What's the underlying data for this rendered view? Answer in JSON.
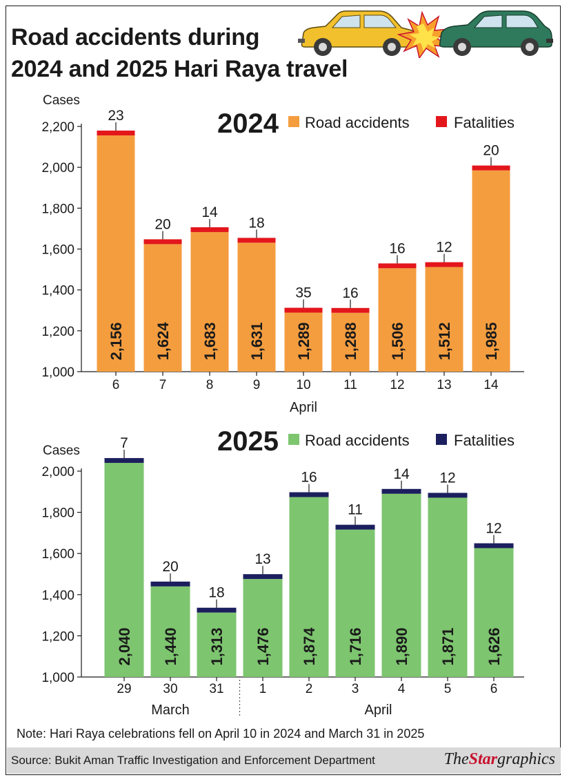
{
  "title_lines": [
    "Road accidents during",
    "2024 and 2025 Hari Raya travel"
  ],
  "note": "Note: Hari Raya celebrations fell on April 10 in 2024 and March 31 in 2025",
  "source": "Source: Bukit Aman Traffic Investigation and Enforcement Department",
  "logo": {
    "the": "The",
    "star": "Star",
    "graphics": "graphics"
  },
  "colors": {
    "orange": "#f49d3f",
    "red": "#e3161c",
    "green": "#7dc56f",
    "navy": "#1c1f5e",
    "text": "#1a1a1a"
  },
  "chart_data": [
    {
      "type": "bar",
      "year_label": "2024",
      "ylabel": "Cases",
      "xlabel": "April",
      "ylim": [
        1000,
        2200
      ],
      "yticks": [
        "1,000",
        "1,200",
        "1,400",
        "1,600",
        "1,800",
        "2,000",
        "2,200"
      ],
      "categories": [
        "6",
        "7",
        "8",
        "9",
        "10",
        "11",
        "12",
        "13",
        "14"
      ],
      "series": [
        {
          "name": "Road accidents",
          "color": "orange",
          "values": [
            2156,
            1624,
            1683,
            1631,
            1289,
            1288,
            1506,
            1512,
            1985
          ],
          "labels": [
            "2,156",
            "1,624",
            "1,683",
            "1,631",
            "1,289",
            "1,288",
            "1,506",
            "1,512",
            "1,985"
          ]
        },
        {
          "name": "Fatalities",
          "color": "red",
          "values": [
            23,
            20,
            14,
            18,
            35,
            16,
            16,
            12,
            20
          ]
        }
      ]
    },
    {
      "type": "bar",
      "year_label": "2025",
      "ylabel": "Cases",
      "ylim": [
        1000,
        2000
      ],
      "yticks": [
        "1,000",
        "1,200",
        "1,400",
        "1,600",
        "1,800",
        "2,000"
      ],
      "categories": [
        "29",
        "30",
        "31",
        "1",
        "2",
        "3",
        "4",
        "5",
        "6"
      ],
      "groups": [
        {
          "label": "March",
          "count": 3
        },
        {
          "label": "April",
          "count": 6
        }
      ],
      "series": [
        {
          "name": "Road accidents",
          "color": "green",
          "values": [
            2040,
            1440,
            1313,
            1476,
            1874,
            1716,
            1890,
            1871,
            1626
          ],
          "labels": [
            "2,040",
            "1,440",
            "1,313",
            "1,476",
            "1,874",
            "1,716",
            "1,890",
            "1,871",
            "1,626"
          ]
        },
        {
          "name": "Fatalities",
          "color": "navy",
          "values": [
            7,
            20,
            18,
            13,
            16,
            11,
            14,
            12,
            12
          ]
        }
      ]
    }
  ]
}
